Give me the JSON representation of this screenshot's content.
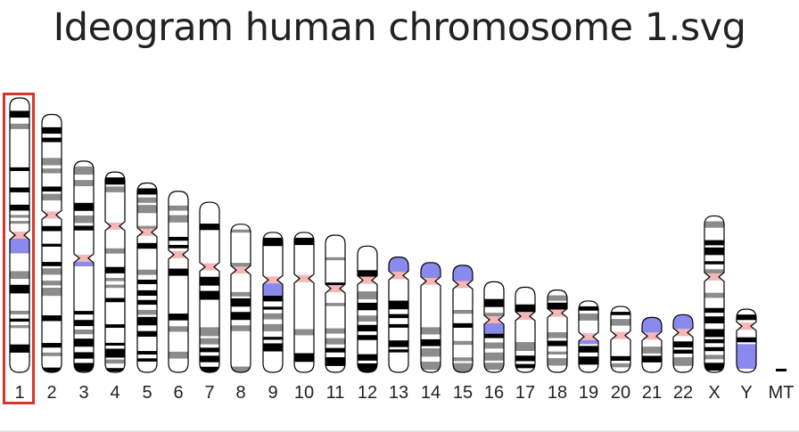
{
  "title": "Ideogram human chromosome 1.svg",
  "selected_chromosome": "1",
  "colors": {
    "title": "#222222",
    "outline": "#000000",
    "band_dark": "#000000",
    "band_gray": "#8c8c8c",
    "band_light": "#ffffff",
    "centromere": "#f4b6b6",
    "heterochromatin": "#8a8aee",
    "selection": "#d9342b"
  },
  "chromosomes": [
    {
      "label": "1",
      "top": 0,
      "cen": 0.5,
      "het": 0.06
    },
    {
      "label": "2",
      "top": 0.06,
      "cen": 0.39
    },
    {
      "label": "3",
      "top": 0.23,
      "cen": 0.46,
      "het": 0.03
    },
    {
      "label": "4",
      "top": 0.27,
      "cen": 0.27
    },
    {
      "label": "5",
      "top": 0.31,
      "cen": 0.26
    },
    {
      "label": "6",
      "top": 0.34,
      "cen": 0.35
    },
    {
      "label": "7",
      "top": 0.38,
      "cen": 0.38
    },
    {
      "label": "8",
      "top": 0.46,
      "cen": 0.31
    },
    {
      "label": "9",
      "top": 0.49,
      "cen": 0.34,
      "het": 0.1
    },
    {
      "label": "10",
      "top": 0.49,
      "cen": 0.33
    },
    {
      "label": "11",
      "top": 0.5,
      "cen": 0.39
    },
    {
      "label": "12",
      "top": 0.54,
      "cen": 0.27
    },
    {
      "label": "13",
      "top": 0.58,
      "cen": 0.16,
      "acro": true
    },
    {
      "label": "14",
      "top": 0.6,
      "cen": 0.17,
      "acro": true
    },
    {
      "label": "15",
      "top": 0.61,
      "cen": 0.18,
      "acro": true
    },
    {
      "label": "16",
      "top": 0.67,
      "cen": 0.42,
      "het": 0.13
    },
    {
      "label": "17",
      "top": 0.69,
      "cen": 0.34
    },
    {
      "label": "18",
      "top": 0.7,
      "cen": 0.28
    },
    {
      "label": "19",
      "top": 0.74,
      "cen": 0.5,
      "het": 0.08
    },
    {
      "label": "20",
      "top": 0.76,
      "cen": 0.44
    },
    {
      "label": "21",
      "top": 0.8,
      "cen": 0.34,
      "acro": true
    },
    {
      "label": "22",
      "top": 0.79,
      "cen": 0.31,
      "acro": true
    },
    {
      "label": "X",
      "top": 0.43,
      "cen": 0.39
    },
    {
      "label": "Y",
      "top": 0.77,
      "cen": 0.27,
      "ylow": true
    },
    {
      "label": "MT",
      "mt": true
    }
  ]
}
